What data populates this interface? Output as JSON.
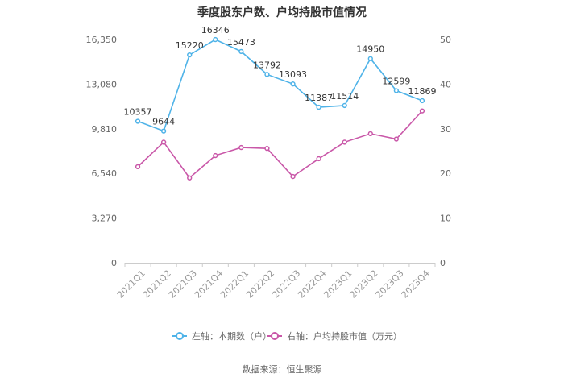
{
  "chart_data": {
    "type": "line",
    "title": "季度股东户数、户均持股市值情况",
    "categories": [
      "2021Q1",
      "2021Q2",
      "2021Q3",
      "2021Q4",
      "2022Q1",
      "2022Q2",
      "2022Q3",
      "2022Q4",
      "2023Q1",
      "2023Q2",
      "2023Q3",
      "2023Q4"
    ],
    "left_axis": {
      "ylim": [
        0,
        16350
      ],
      "ticks": [
        0,
        3270,
        6540,
        9810,
        13080,
        16350
      ],
      "tick_labels": [
        "0",
        "3,270",
        "6,540",
        "9,810",
        "13,080",
        "16,350"
      ]
    },
    "right_axis": {
      "ylim": [
        0,
        50
      ],
      "ticks": [
        0,
        10,
        20,
        30,
        40,
        50
      ],
      "tick_labels": [
        "0",
        "10",
        "20",
        "30",
        "40",
        "50"
      ]
    },
    "series": [
      {
        "name": "左轴：本期数（户）",
        "axis": "left",
        "color": "#4fb3e8",
        "values": [
          10357,
          9644,
          15220,
          16346,
          15473,
          13792,
          13093,
          11387,
          11514,
          14950,
          12599,
          11869
        ],
        "labels": [
          "10357",
          "9644",
          "15220",
          "16346",
          "15473",
          "13792",
          "13093",
          "11387",
          "11514",
          "14950",
          "12599",
          "11869"
        ]
      },
      {
        "name": "右轴：户均持股市值（万元）",
        "axis": "right",
        "color": "#c957a8",
        "values": [
          21.5,
          27.0,
          19.0,
          24.0,
          25.8,
          25.6,
          19.3,
          23.3,
          27.0,
          28.9,
          27.7,
          34.0
        ]
      }
    ],
    "grid": false,
    "legend": "bottom"
  },
  "source": "数据来源：恒生聚源"
}
